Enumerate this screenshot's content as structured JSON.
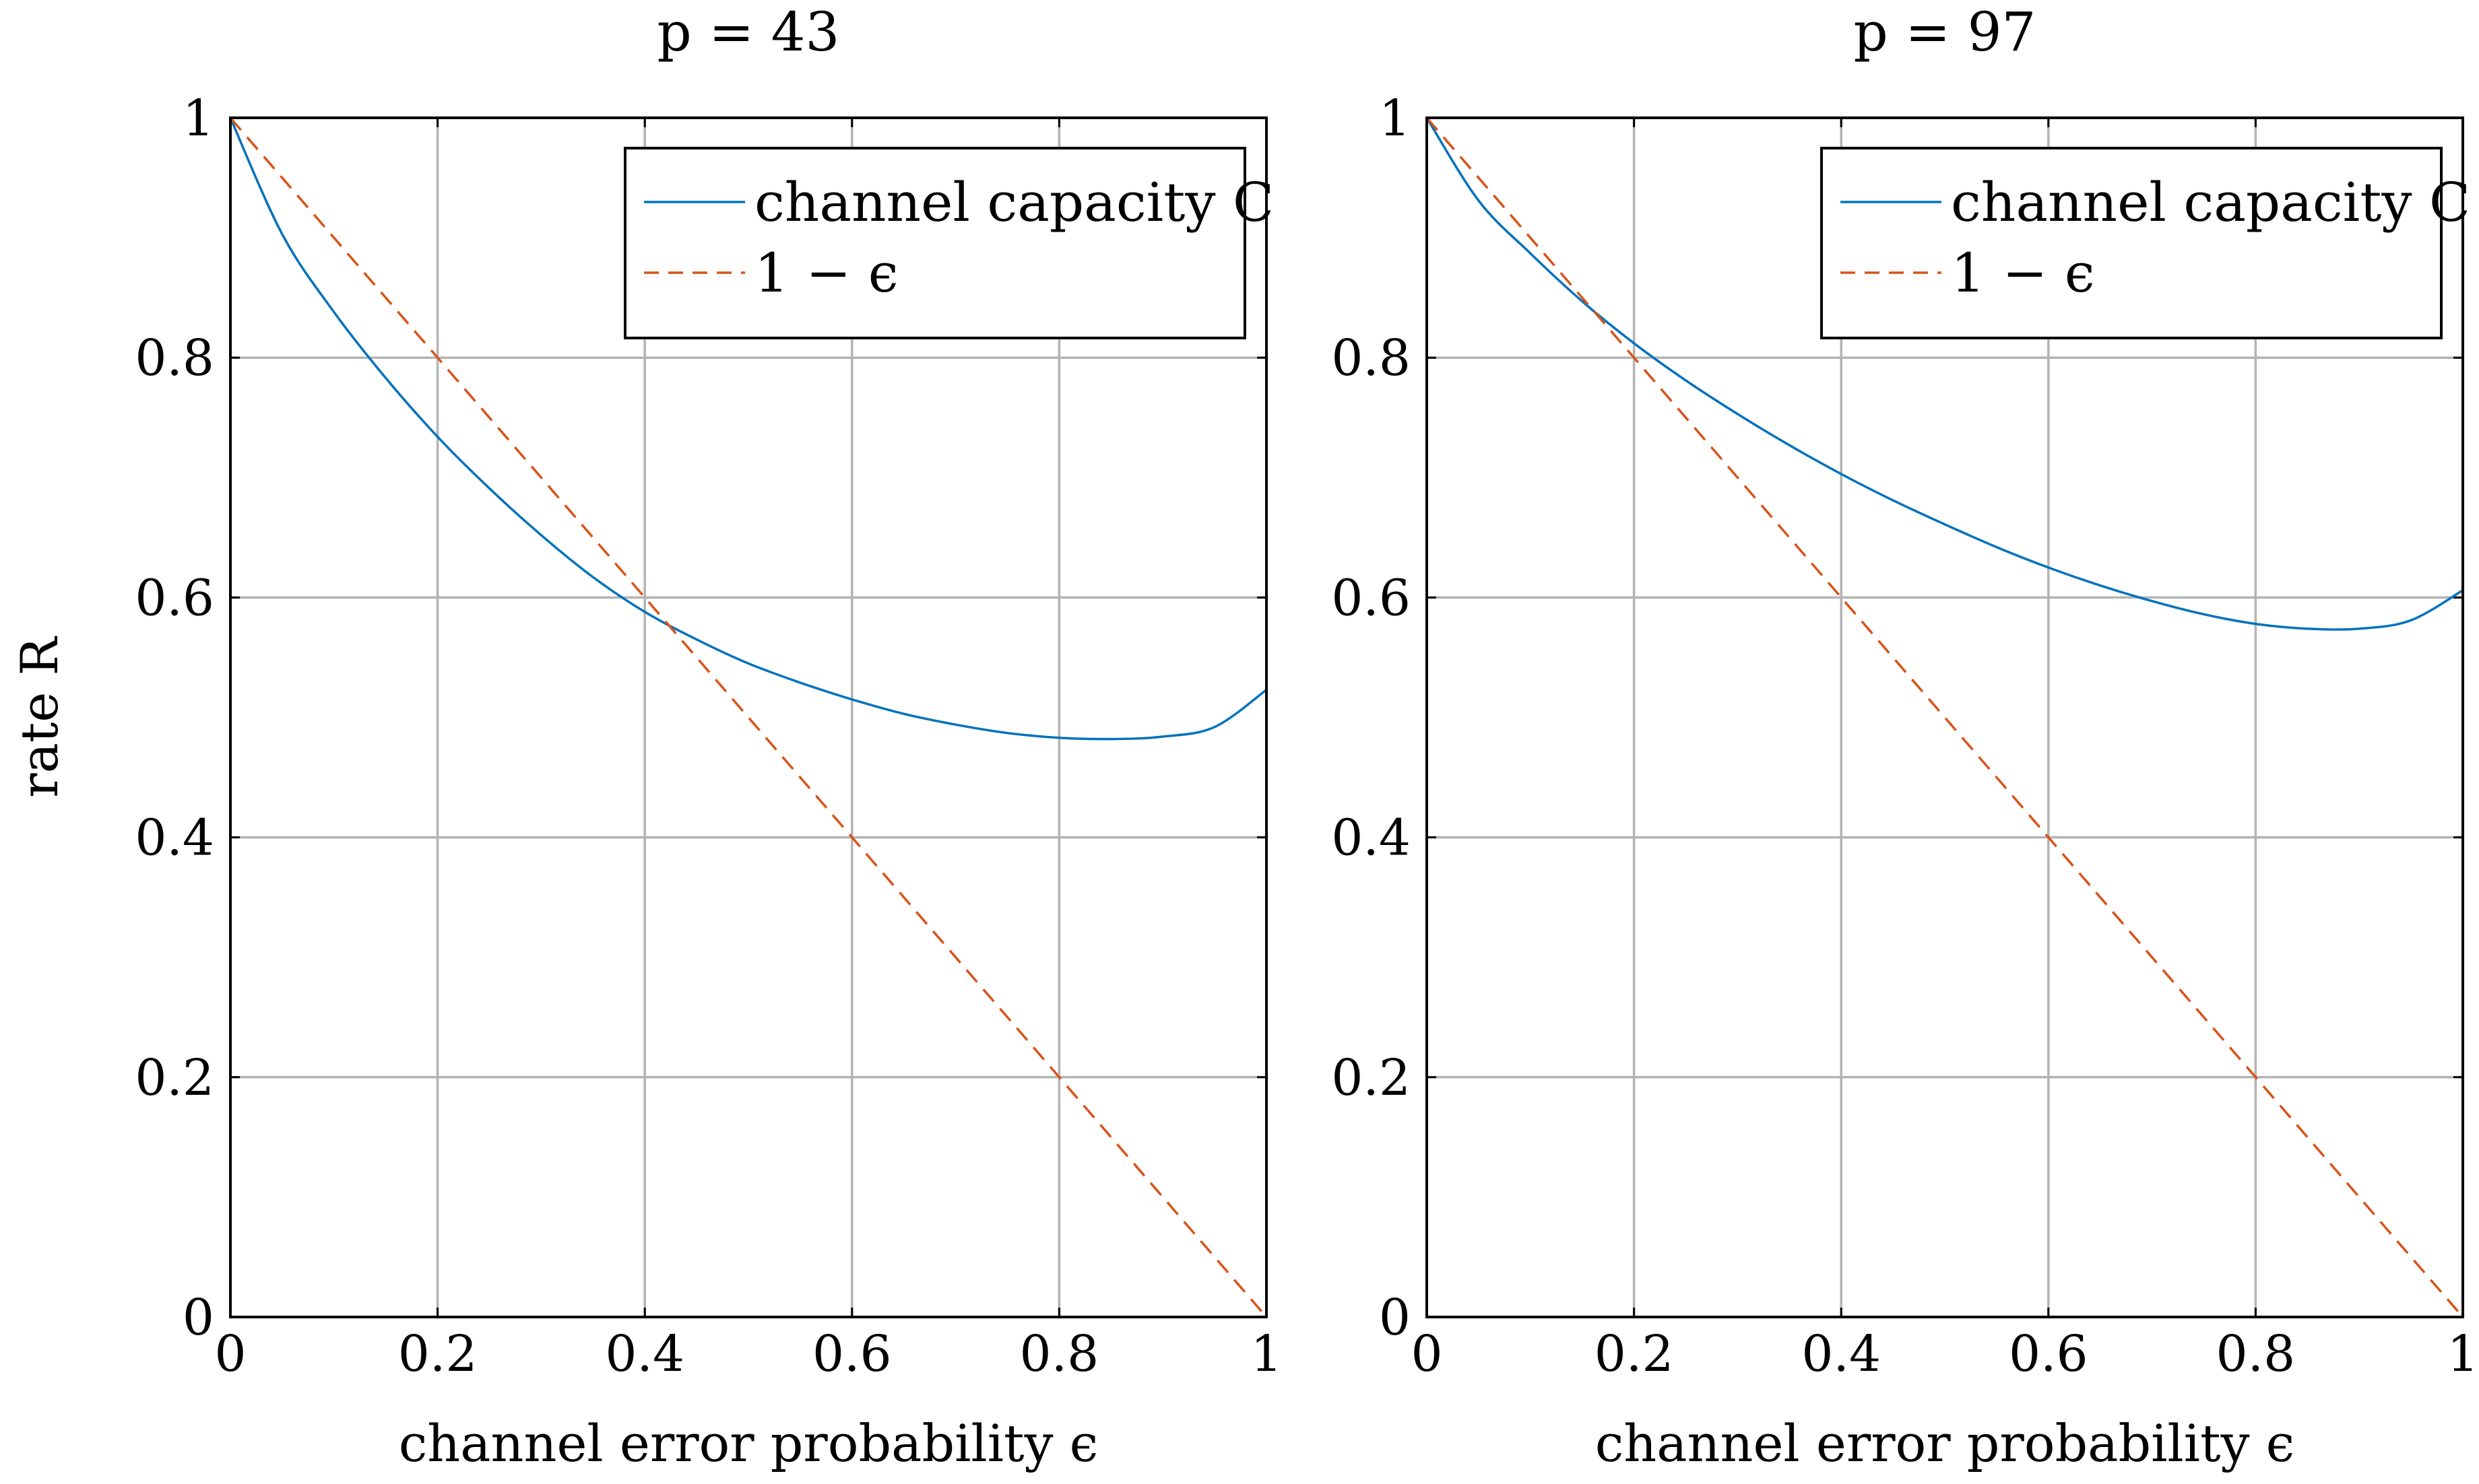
{
  "chart_data": [
    {
      "type": "line",
      "title": "p = 43",
      "xlabel": "channel error probability ϵ",
      "ylabel": "rate R",
      "xlim": [
        0,
        1
      ],
      "ylim": [
        0,
        1
      ],
      "xticks": [
        "0",
        "0.2",
        "0.4",
        "0.6",
        "0.8",
        "1"
      ],
      "yticks": [
        "0",
        "0.2",
        "0.4",
        "0.6",
        "0.8",
        "1"
      ],
      "grid": true,
      "legend_position": "top-right",
      "series": [
        {
          "name": "channel capacity C",
          "color": "#0072bd",
          "style": "solid",
          "x": [
            0,
            0.05,
            0.1,
            0.15,
            0.2,
            0.25,
            0.3,
            0.35,
            0.4,
            0.45,
            0.5,
            0.55,
            0.6,
            0.65,
            0.7,
            0.75,
            0.8,
            0.85,
            0.9,
            0.95,
            1.0
          ],
          "y": [
            1.0,
            0.903,
            0.838,
            0.783,
            0.734,
            0.691,
            0.652,
            0.617,
            0.588,
            0.565,
            0.545,
            0.529,
            0.515,
            0.503,
            0.494,
            0.487,
            0.483,
            0.482,
            0.484,
            0.492,
            0.523
          ]
        },
        {
          "name": "1 − ϵ",
          "color": "#d95319",
          "style": "dashed",
          "x": [
            0,
            1
          ],
          "y": [
            1,
            0
          ]
        }
      ]
    },
    {
      "type": "line",
      "title": "p = 97",
      "xlabel": "channel error probability ϵ",
      "ylabel": "",
      "xlim": [
        0,
        1
      ],
      "ylim": [
        0,
        1
      ],
      "xticks": [
        "0",
        "0.2",
        "0.4",
        "0.6",
        "0.8",
        "1"
      ],
      "yticks": [
        "0",
        "0.2",
        "0.4",
        "0.6",
        "0.8",
        "1"
      ],
      "grid": true,
      "legend_position": "top-right",
      "series": [
        {
          "name": "channel capacity C",
          "color": "#0072bd",
          "style": "solid",
          "x": [
            0,
            0.05,
            0.1,
            0.15,
            0.2,
            0.25,
            0.3,
            0.35,
            0.4,
            0.45,
            0.5,
            0.55,
            0.6,
            0.65,
            0.7,
            0.75,
            0.8,
            0.85,
            0.9,
            0.95,
            1.0
          ],
          "y": [
            1.0,
            0.931,
            0.887,
            0.847,
            0.812,
            0.781,
            0.753,
            0.727,
            0.703,
            0.681,
            0.661,
            0.642,
            0.625,
            0.61,
            0.597,
            0.586,
            0.578,
            0.574,
            0.574,
            0.581,
            0.606
          ]
        },
        {
          "name": "1 − ϵ",
          "color": "#d95319",
          "style": "dashed",
          "x": [
            0,
            1
          ],
          "y": [
            1,
            0
          ]
        }
      ]
    }
  ]
}
